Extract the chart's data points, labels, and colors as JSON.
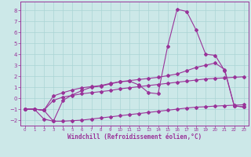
{
  "xlabel": "Windchill (Refroidissement éolien,°C)",
  "x_values": [
    0,
    1,
    2,
    3,
    4,
    5,
    6,
    7,
    8,
    9,
    10,
    11,
    12,
    13,
    14,
    15,
    16,
    17,
    18,
    19,
    20,
    21,
    22,
    23
  ],
  "line1_y": [
    -1.0,
    -1.0,
    -1.1,
    -2.1,
    -0.2,
    0.3,
    0.7,
    1.0,
    1.1,
    1.3,
    1.5,
    1.55,
    1.2,
    0.5,
    0.4,
    4.7,
    8.1,
    7.9,
    6.2,
    4.0,
    3.9,
    2.5,
    -0.7,
    -0.8
  ],
  "line2_y": [
    -1.0,
    -1.0,
    -1.1,
    0.2,
    0.5,
    0.75,
    0.95,
    1.05,
    1.15,
    1.35,
    1.5,
    1.6,
    1.7,
    1.8,
    1.9,
    2.05,
    2.2,
    2.5,
    2.8,
    3.0,
    3.2,
    2.6,
    -0.7,
    -0.8
  ],
  "line3_y": [
    -1.0,
    -1.0,
    -1.1,
    -0.2,
    0.1,
    0.25,
    0.4,
    0.5,
    0.6,
    0.7,
    0.85,
    0.95,
    1.05,
    1.15,
    1.25,
    1.35,
    1.45,
    1.55,
    1.65,
    1.75,
    1.8,
    1.85,
    1.9,
    1.95
  ],
  "line4_y": [
    -1.0,
    -1.0,
    -1.9,
    -2.1,
    -2.1,
    -2.05,
    -2.0,
    -1.9,
    -1.8,
    -1.7,
    -1.6,
    -1.5,
    -1.4,
    -1.3,
    -1.2,
    -1.1,
    -1.0,
    -0.9,
    -0.82,
    -0.78,
    -0.72,
    -0.68,
    -0.64,
    -0.6
  ],
  "color": "#993399",
  "bg_color": "#cce8e8",
  "grid_color": "#aad4d4",
  "ylim": [
    -2.5,
    8.8
  ],
  "xlim": [
    -0.5,
    23.5
  ]
}
